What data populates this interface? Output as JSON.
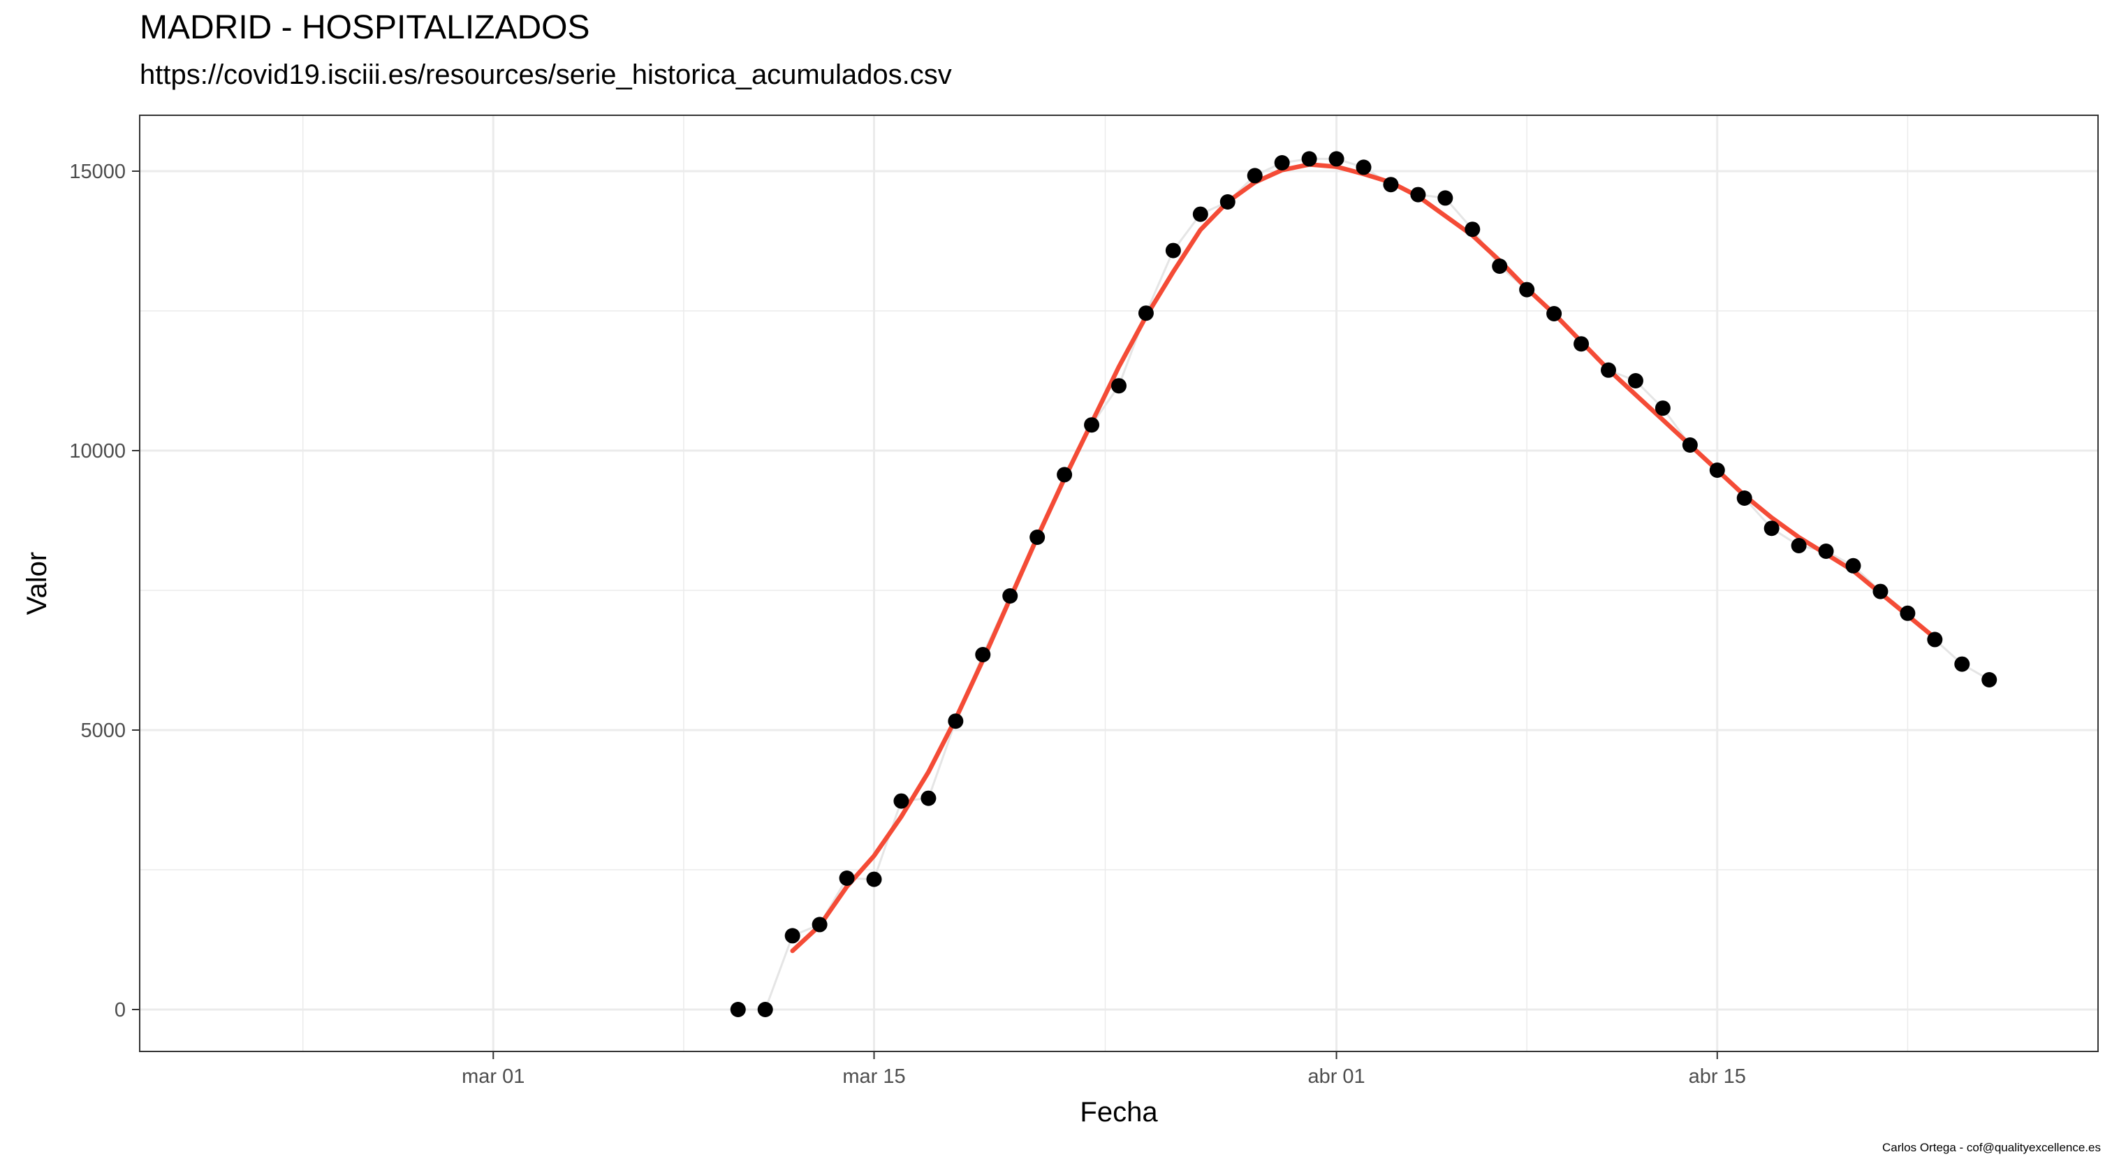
{
  "header": {
    "title": "MADRID - HOSPITALIZADOS",
    "subtitle": "https://covid19.isciii.es/resources/serie_historica_acumulados.csv"
  },
  "caption": "Carlos Ortega - cof@qualityexcellence.es",
  "colors": {
    "points": "#000000",
    "smooth_line": "#F44B36",
    "raw_line": "#E5E5E5",
    "grid": "#EBEBEB",
    "panel_border": "#333333"
  },
  "chart_data": {
    "type": "scatter",
    "title": "MADRID - HOSPITALIZADOS",
    "subtitle": "https://covid19.isciii.es/resources/serie_historica_acumulados.csv",
    "xlabel": "Fecha",
    "ylabel": "Valor",
    "xlim": [
      "2020-02-17",
      "2020-04-29"
    ],
    "ylim": [
      -750,
      16000
    ],
    "x_ticks": [
      {
        "date": "2020-03-01",
        "label": "mar 01"
      },
      {
        "date": "2020-03-15",
        "label": "mar 15"
      },
      {
        "date": "2020-04-01",
        "label": "abr 01"
      },
      {
        "date": "2020-04-15",
        "label": "abr 15"
      }
    ],
    "y_ticks": [
      0,
      5000,
      10000,
      15000
    ],
    "grid": true,
    "series": [
      {
        "kind": "points",
        "x": [
          "2020-03-10",
          "2020-03-11",
          "2020-03-12",
          "2020-03-13",
          "2020-03-14",
          "2020-03-15",
          "2020-03-16",
          "2020-03-17",
          "2020-03-18",
          "2020-03-19",
          "2020-03-20",
          "2020-03-21",
          "2020-03-22",
          "2020-03-23",
          "2020-03-24",
          "2020-03-25",
          "2020-03-26",
          "2020-03-27",
          "2020-03-28",
          "2020-03-29",
          "2020-03-30",
          "2020-03-31",
          "2020-04-01",
          "2020-04-02",
          "2020-04-03",
          "2020-04-04",
          "2020-04-05",
          "2020-04-06",
          "2020-04-07",
          "2020-04-08",
          "2020-04-09",
          "2020-04-10",
          "2020-04-11",
          "2020-04-12",
          "2020-04-13",
          "2020-04-14",
          "2020-04-15",
          "2020-04-16",
          "2020-04-17",
          "2020-04-18",
          "2020-04-19",
          "2020-04-20",
          "2020-04-21",
          "2020-04-22",
          "2020-04-23",
          "2020-04-24",
          "2020-04-25"
        ],
        "values": [
          0,
          0,
          1320,
          1520,
          2350,
          2330,
          3730,
          3780,
          5160,
          6350,
          7400,
          8450,
          9570,
          10460,
          11160,
          12460,
          13580,
          14230,
          14450,
          14920,
          15150,
          15220,
          15220,
          15070,
          14760,
          14580,
          14520,
          13960,
          13300,
          12880,
          12450,
          11910,
          11440,
          11250,
          10760,
          10100,
          9650,
          9150,
          8610,
          8300,
          8200,
          7940,
          7480,
          7090,
          6620,
          6180,
          5900
        ]
      },
      {
        "kind": "smooth",
        "x": [
          "2020-03-12",
          "2020-03-13",
          "2020-03-14",
          "2020-03-15",
          "2020-03-16",
          "2020-03-17",
          "2020-03-18",
          "2020-03-19",
          "2020-03-20",
          "2020-03-21",
          "2020-03-22",
          "2020-03-23",
          "2020-03-24",
          "2020-03-25",
          "2020-03-26",
          "2020-03-27",
          "2020-03-28",
          "2020-03-29",
          "2020-03-30",
          "2020-03-31",
          "2020-04-01",
          "2020-04-02",
          "2020-04-03",
          "2020-04-04",
          "2020-04-05",
          "2020-04-06",
          "2020-04-07",
          "2020-04-08",
          "2020-04-09",
          "2020-04-10",
          "2020-04-11",
          "2020-04-12",
          "2020-04-13",
          "2020-04-14",
          "2020-04-15",
          "2020-04-16",
          "2020-04-17",
          "2020-04-18",
          "2020-04-19",
          "2020-04-20",
          "2020-04-21",
          "2020-04-22",
          "2020-04-23"
        ],
        "values": [
          1050,
          1500,
          2200,
          2750,
          3450,
          4250,
          5200,
          6250,
          7350,
          8450,
          9500,
          10500,
          11500,
          12400,
          13200,
          13950,
          14450,
          14800,
          15020,
          15120,
          15080,
          14950,
          14800,
          14550,
          14200,
          13850,
          13400,
          12900,
          12450,
          11950,
          11450,
          11000,
          10550,
          10100,
          9650,
          9200,
          8800,
          8450,
          8150,
          7850,
          7450,
          7050,
          6650
        ]
      }
    ]
  }
}
